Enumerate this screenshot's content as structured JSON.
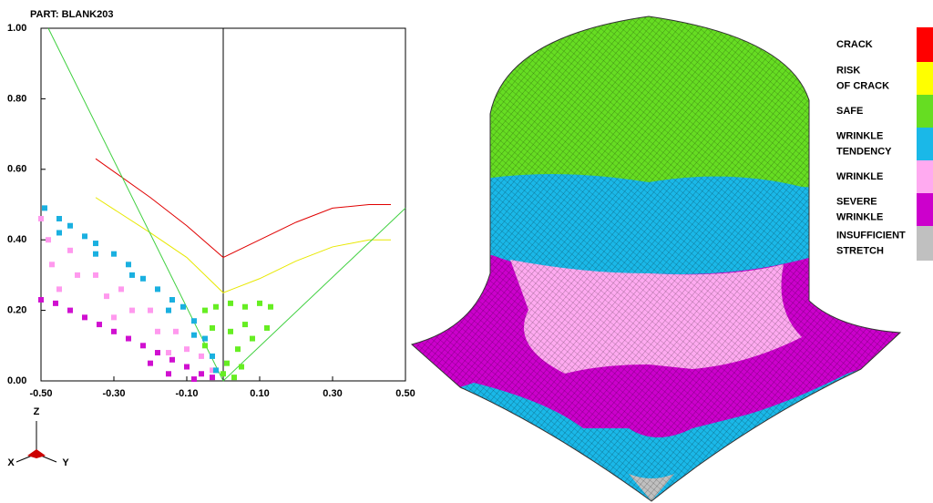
{
  "chart_data": {
    "type": "scatter",
    "title": "PART: BLANK203",
    "xlim": [
      -0.5,
      0.5
    ],
    "ylim": [
      0,
      1
    ],
    "xticks": [
      {
        "value": -0.5,
        "label": "-0.50"
      },
      {
        "value": -0.3,
        "label": "-0.30"
      },
      {
        "value": -0.1,
        "label": "-0.10"
      },
      {
        "value": 0.1,
        "label": "0.10"
      },
      {
        "value": 0.3,
        "label": "0.30"
      },
      {
        "value": 0.5,
        "label": "0.50"
      }
    ],
    "yticks": [
      {
        "value": 0,
        "label": "0.00"
      },
      {
        "value": 0.2,
        "label": "0.20"
      },
      {
        "value": 0.4,
        "label": "0.40"
      },
      {
        "value": 0.6,
        "label": "0.60"
      },
      {
        "value": 0.8,
        "label": "0.80"
      },
      {
        "value": 1,
        "label": "1.00"
      }
    ],
    "lines": [
      {
        "color": "#e00000",
        "x": [
          -0.35,
          -0.2,
          -0.1,
          0,
          0.1,
          0.2,
          0.3,
          0.4,
          0.46
        ],
        "y": [
          0.63,
          0.52,
          0.44,
          0.35,
          0.4,
          0.45,
          0.49,
          0.5,
          0.5
        ]
      },
      {
        "color": "#e8e800",
        "x": [
          -0.35,
          -0.2,
          -0.1,
          0,
          0.1,
          0.2,
          0.3,
          0.4,
          0.46
        ],
        "y": [
          0.52,
          0.42,
          0.35,
          0.25,
          0.29,
          0.34,
          0.38,
          0.4,
          0.4
        ]
      },
      {
        "color": "#40d040",
        "x": [
          -0.48,
          0
        ],
        "y": [
          1.0,
          0
        ]
      },
      {
        "color": "#40d040",
        "x": [
          0,
          0.5
        ],
        "y": [
          0,
          0.49
        ]
      }
    ],
    "point_sets": [
      {
        "color": "#ff99ee",
        "x": [
          -0.5,
          -0.48,
          -0.47,
          -0.42,
          -0.4,
          -0.35,
          -0.32,
          -0.28,
          -0.25,
          -0.2,
          -0.18,
          -0.13,
          -0.1,
          -0.06,
          -0.03,
          -0.45,
          -0.3,
          -0.15
        ],
        "y": [
          0.46,
          0.4,
          0.33,
          0.37,
          0.3,
          0.3,
          0.24,
          0.26,
          0.2,
          0.2,
          0.14,
          0.14,
          0.09,
          0.07,
          0.03,
          0.26,
          0.18,
          0.08
        ]
      },
      {
        "color": "#1ab0e0",
        "x": [
          -0.49,
          -0.45,
          -0.42,
          -0.38,
          -0.35,
          -0.3,
          -0.26,
          -0.22,
          -0.18,
          -0.14,
          -0.11,
          -0.08,
          -0.05,
          -0.03,
          -0.02,
          -0.45,
          -0.35,
          -0.25,
          -0.15,
          -0.08
        ],
        "y": [
          0.49,
          0.46,
          0.44,
          0.41,
          0.39,
          0.36,
          0.33,
          0.29,
          0.26,
          0.23,
          0.21,
          0.17,
          0.12,
          0.07,
          0.03,
          0.42,
          0.36,
          0.3,
          0.2,
          0.13
        ]
      },
      {
        "color": "#d010d0",
        "x": [
          -0.5,
          -0.46,
          -0.42,
          -0.38,
          -0.34,
          -0.3,
          -0.26,
          -0.22,
          -0.18,
          -0.14,
          -0.1,
          -0.06,
          -0.03,
          -0.15,
          -0.2,
          -0.08
        ],
        "y": [
          0.23,
          0.22,
          0.2,
          0.18,
          0.16,
          0.14,
          0.12,
          0.1,
          0.08,
          0.06,
          0.04,
          0.02,
          0.01,
          0.02,
          0.05,
          0.005
        ]
      },
      {
        "color": "#66ee22",
        "x": [
          -0.05,
          -0.02,
          0.02,
          0.06,
          0.1,
          0.13,
          0.12,
          0.08,
          0.04,
          0.01,
          0.0,
          -0.03,
          -0.05,
          0.02,
          0.06,
          0.03,
          0.05
        ],
        "y": [
          0.2,
          0.21,
          0.22,
          0.21,
          0.22,
          0.21,
          0.15,
          0.12,
          0.09,
          0.05,
          0.02,
          0.15,
          0.1,
          0.14,
          0.16,
          0.01,
          0.04
        ]
      }
    ]
  },
  "legend": [
    {
      "lines": [
        "CRACK"
      ],
      "color": "#ff0000"
    },
    {
      "lines": [
        "RISK",
        "OF CRACK"
      ],
      "color": "#ffff00"
    },
    {
      "lines": [
        "SAFE"
      ],
      "color": "#66dd22"
    },
    {
      "lines": [
        "WRINKLE",
        "TENDENCY"
      ],
      "color": "#1ab8e8"
    },
    {
      "lines": [
        "WRINKLE"
      ],
      "color": "#ffaaf0"
    },
    {
      "lines": [
        "SEVERE",
        "WRINKLE"
      ],
      "color": "#cc00cc"
    },
    {
      "lines": [
        "INSUFFICIENT",
        "STRETCH"
      ],
      "color": "#c0c0c0"
    }
  ],
  "triad": {
    "z": "Z",
    "x": "X",
    "y": "Y"
  }
}
